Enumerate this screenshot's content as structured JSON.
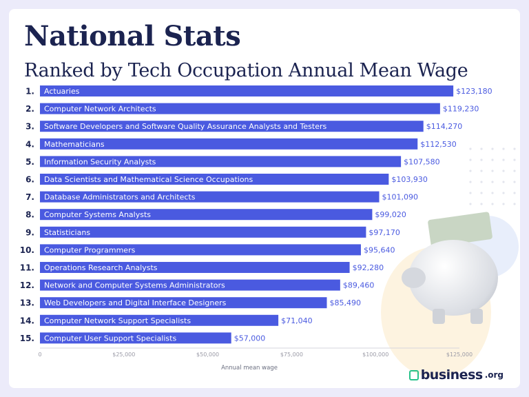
{
  "header": {
    "title": "National Stats",
    "subtitle": "Ranked by Tech Occupation Annual Mean Wage"
  },
  "chart_data": {
    "type": "bar",
    "orientation": "horizontal",
    "ranks": [
      "1.",
      "2.",
      "3.",
      "4.",
      "5.",
      "6.",
      "7.",
      "8.",
      "9.",
      "10.",
      "11.",
      "12.",
      "13.",
      "14.",
      "15."
    ],
    "categories": [
      "Actuaries",
      "Computer Network Architects",
      "Software Developers and Software Quality Assurance Analysts and Testers",
      "Mathematicians",
      "Information Security Analysts",
      "Data Scientists and Mathematical Science Occupations",
      "Database Administrators and Architects",
      "Computer Systems Analysts",
      "Statisticians",
      "Computer Programmers",
      "Operations Research Analysts",
      "Network and Computer Systems Administrators",
      "Web Developers and Digital Interface Designers",
      "Computer Network Support Specialists",
      "Computer User Support Specialists"
    ],
    "values": [
      123180,
      119230,
      114270,
      112530,
      107580,
      103930,
      101090,
      99020,
      97170,
      95640,
      92280,
      89460,
      85490,
      71040,
      57000
    ],
    "data_labels": [
      "$123,180",
      "$119,230",
      "$114,270",
      "$112,530",
      "$107,580",
      "$103,930",
      "$101,090",
      "$99,020",
      "$97,170",
      "$95,640",
      "$92,280",
      "$89,460",
      "$85,490",
      "$71,040",
      "$57,000"
    ],
    "xlabel": "Annual mean wage",
    "xlim": [
      0,
      125000
    ],
    "xticks": [
      0,
      25000,
      50000,
      75000,
      100000,
      125000
    ],
    "xtick_labels": [
      "0",
      "$25,000",
      "$50,000",
      "$75,000",
      "$100,000",
      "$125,000"
    ],
    "bar_color": "#4a5ae0",
    "grid": false
  },
  "brand": {
    "name": "business",
    "suffix": ".org",
    "icon": "briefcase-icon",
    "color": "#28c28a"
  }
}
